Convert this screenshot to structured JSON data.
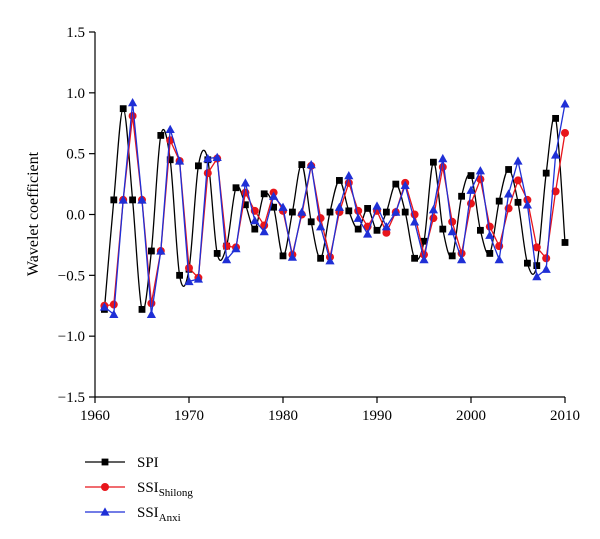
{
  "chart_data": {
    "type": "line",
    "xlabel": "",
    "ylabel": "Wavelet coefficient",
    "xlim": [
      1960,
      2010
    ],
    "ylim": [
      -1.5,
      1.5
    ],
    "xticks": [
      "1960",
      "1970",
      "1980",
      "1990",
      "2000",
      "2010"
    ],
    "yticks": [
      "1.5",
      "1.0",
      "0.5",
      "0.0",
      "−0.5",
      "−1.0",
      "−1.5"
    ],
    "grid": false,
    "legend_position": "bottom-left",
    "series": [
      {
        "name": "SPI",
        "label_main": "SPI",
        "label_sub": "",
        "color": "#000000",
        "marker": "square",
        "x": [
          1961,
          1962,
          1963,
          1964,
          1965,
          1966,
          1967,
          1968,
          1969,
          1970,
          1971,
          1972,
          1973,
          1974,
          1975,
          1976,
          1977,
          1978,
          1979,
          1980,
          1981,
          1982,
          1983,
          1984,
          1985,
          1986,
          1987,
          1988,
          1989,
          1990,
          1991,
          1992,
          1993,
          1994,
          1995,
          1996,
          1997,
          1998,
          1999,
          2000,
          2001,
          2002,
          2003,
          2004,
          2005,
          2006,
          2007,
          2008,
          2009,
          2010
        ],
        "values": [
          -0.78,
          0.12,
          0.87,
          0.12,
          -0.78,
          -0.3,
          0.65,
          0.45,
          -0.5,
          -0.45,
          0.4,
          0.45,
          -0.32,
          -0.26,
          0.22,
          0.08,
          -0.12,
          0.17,
          0.06,
          -0.34,
          0.02,
          0.41,
          -0.06,
          -0.36,
          0.02,
          0.28,
          0.03,
          -0.12,
          0.05,
          -0.13,
          0.02,
          0.25,
          0.02,
          -0.36,
          -0.22,
          0.43,
          -0.12,
          -0.34,
          0.15,
          0.32,
          -0.13,
          -0.32,
          0.11,
          0.37,
          0.1,
          -0.4,
          -0.42,
          0.34,
          0.79,
          -0.23
        ]
      },
      {
        "name": "SSI_Shilong",
        "label_main": "SSI",
        "label_sub": "Shilong",
        "color": "#e8151b",
        "marker": "circle",
        "x": [
          1961,
          1962,
          1963,
          1964,
          1965,
          1966,
          1967,
          1968,
          1969,
          1970,
          1971,
          1972,
          1973,
          1974,
          1975,
          1976,
          1977,
          1978,
          1979,
          1980,
          1981,
          1982,
          1983,
          1984,
          1985,
          1986,
          1987,
          1988,
          1989,
          1990,
          1991,
          1992,
          1993,
          1994,
          1995,
          1996,
          1997,
          1998,
          1999,
          2000,
          2001,
          2002,
          2003,
          2004,
          2005,
          2006,
          2007,
          2008,
          2009,
          2010
        ],
        "values": [
          -0.75,
          -0.74,
          0.12,
          0.81,
          0.12,
          -0.73,
          -0.3,
          0.61,
          0.44,
          -0.44,
          -0.52,
          0.34,
          0.46,
          -0.26,
          -0.27,
          0.18,
          0.03,
          -0.09,
          0.18,
          0.03,
          -0.33,
          0.0,
          0.4,
          -0.03,
          -0.35,
          0.02,
          0.26,
          0.03,
          -0.1,
          0.03,
          -0.15,
          0.02,
          0.26,
          0.0,
          -0.33,
          -0.03,
          0.39,
          -0.06,
          -0.32,
          0.09,
          0.29,
          -0.1,
          -0.26,
          0.05,
          0.28,
          0.12,
          -0.27,
          -0.36,
          0.19,
          0.67
        ]
      },
      {
        "name": "SSI_Anxi",
        "label_main": "SSI",
        "label_sub": "Anxi",
        "color": "#1f2fd6",
        "marker": "triangle",
        "x": [
          1961,
          1962,
          1963,
          1964,
          1965,
          1966,
          1967,
          1968,
          1969,
          1970,
          1971,
          1972,
          1973,
          1974,
          1975,
          1976,
          1977,
          1978,
          1979,
          1980,
          1981,
          1982,
          1983,
          1984,
          1985,
          1986,
          1987,
          1988,
          1989,
          1990,
          1991,
          1992,
          1993,
          1994,
          1995,
          1996,
          1997,
          1998,
          1999,
          2000,
          2001,
          2002,
          2003,
          2004,
          2005,
          2006,
          2007,
          2008,
          2009,
          2010
        ],
        "values": [
          -0.76,
          -0.82,
          0.12,
          0.92,
          0.12,
          -0.82,
          -0.3,
          0.7,
          0.44,
          -0.55,
          -0.53,
          0.46,
          0.47,
          -0.37,
          -0.28,
          0.26,
          -0.05,
          -0.14,
          0.15,
          0.06,
          -0.35,
          0.02,
          0.41,
          -0.1,
          -0.38,
          0.06,
          0.32,
          -0.03,
          -0.16,
          0.07,
          -0.1,
          0.02,
          0.24,
          -0.06,
          -0.37,
          0.04,
          0.46,
          -0.14,
          -0.37,
          0.2,
          0.36,
          -0.17,
          -0.37,
          0.17,
          0.44,
          0.08,
          -0.51,
          -0.45,
          0.49,
          0.91
        ]
      }
    ]
  }
}
